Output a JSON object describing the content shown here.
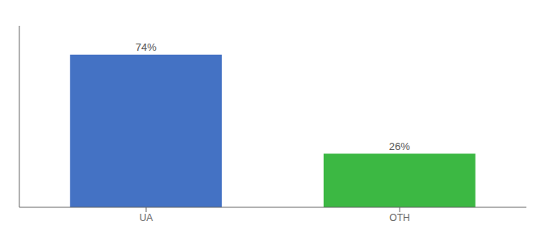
{
  "chart_data": {
    "type": "bar",
    "categories": [
      "UA",
      "OTH"
    ],
    "values": [
      74,
      26
    ],
    "value_labels": [
      "74%",
      "26%"
    ],
    "colors": [
      "#4472c4",
      "#3cb843"
    ],
    "ylim": [
      0,
      88
    ],
    "data_labels": true,
    "tick_labels": "x"
  }
}
